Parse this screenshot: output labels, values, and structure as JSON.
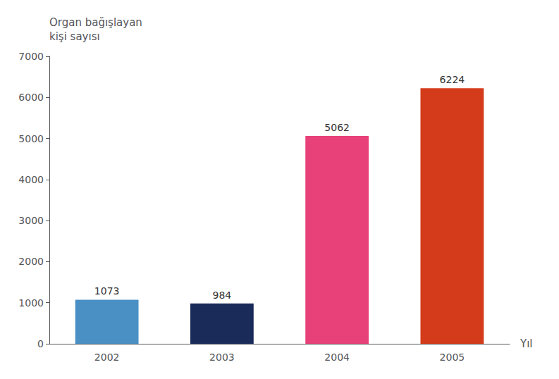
{
  "chart_data": {
    "type": "bar",
    "categories": [
      "2002",
      "2003",
      "2004",
      "2005"
    ],
    "values": [
      1073,
      984,
      5062,
      6224
    ],
    "colors": [
      "#4A90C4",
      "#1A2B5A",
      "#E8417A",
      "#D43B1A"
    ],
    "ylabel": "Organ bağışlayan\nkişi sayısı",
    "xlabel": "Yıl",
    "ylim": [
      0,
      7000
    ],
    "yticks": [
      0,
      1000,
      2000,
      3000,
      4000,
      5000,
      6000,
      7000
    ],
    "data_labels": true,
    "grid": false
  }
}
